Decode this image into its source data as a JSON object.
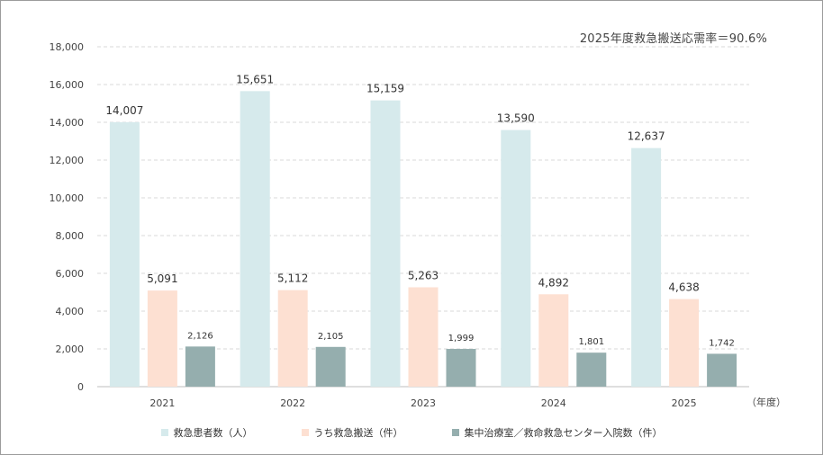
{
  "chart_data": {
    "type": "bar",
    "categories": [
      "2021",
      "2022",
      "2023",
      "2024",
      "2025"
    ],
    "x_unit": "（年度）",
    "annotation": "2025年度救急搬送応需率＝90.6%",
    "ylim": [
      0,
      18000
    ],
    "yticks": [
      0,
      2000,
      4000,
      6000,
      8000,
      10000,
      12000,
      14000,
      16000,
      18000
    ],
    "ytick_labels": [
      "0",
      "2,000",
      "4,000",
      "6,000",
      "8,000",
      "10,000",
      "12,000",
      "14,000",
      "16,000",
      "18,000"
    ],
    "grid": true,
    "legend_position": "bottom",
    "series": [
      {
        "name": "救急患者数（人）",
        "color": "#d6eaec",
        "values": [
          14007,
          15651,
          15159,
          13590,
          12637
        ],
        "labels": [
          "14,007",
          "15,651",
          "15,159",
          "13,590",
          "12,637"
        ]
      },
      {
        "name": "うち救急搬送（件）",
        "color": "#fde0d2",
        "values": [
          5091,
          5112,
          5263,
          4892,
          4638
        ],
        "labels": [
          "5,091",
          "5,112",
          "5,263",
          "4,892",
          "4,638"
        ]
      },
      {
        "name": "集中治療室／救命救急センター入院数（件）",
        "color": "#95aeae",
        "values": [
          2126,
          2105,
          1999,
          1801,
          1742
        ],
        "labels": [
          "2,126",
          "2,105",
          "1,999",
          "1,801",
          "1,742"
        ]
      }
    ]
  }
}
